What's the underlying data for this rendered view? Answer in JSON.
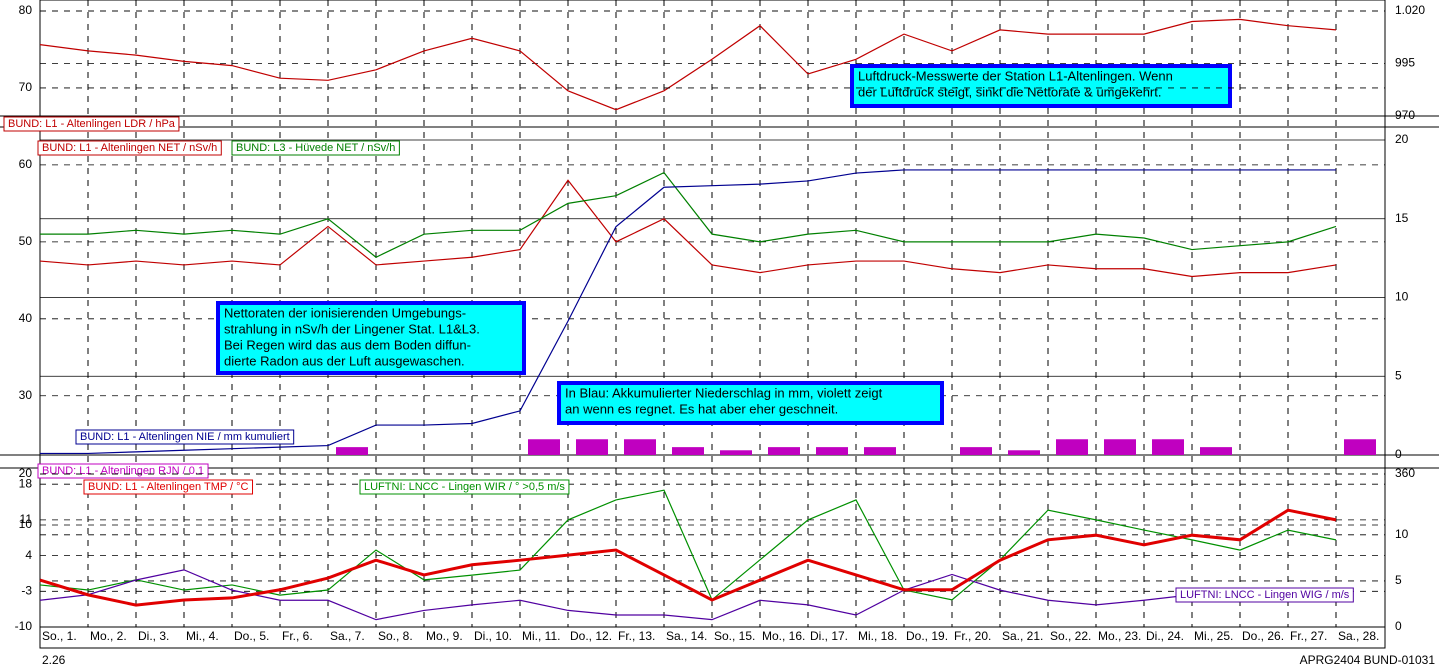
{
  "x_axis": {
    "categories": [
      "So., 1.",
      "Mo., 2.",
      "Di., 3.",
      "Mi., 4.",
      "Do., 5.",
      "Fr., 6.",
      "Sa., 7.",
      "So., 8.",
      "Mo., 9.",
      "Di., 10.",
      "Mi., 11.",
      "Do., 12.",
      "Fr., 13.",
      "Sa., 14.",
      "So., 15.",
      "Mo., 16.",
      "Di., 17.",
      "Mi., 18.",
      "Do., 19.",
      "Fr., 20.",
      "Sa., 21.",
      "So., 22.",
      "Mo., 23.",
      "Di., 24.",
      "Mi., 25.",
      "Do., 26.",
      "Fr., 27.",
      "Sa., 28."
    ],
    "sub_label": "2.26",
    "footer": "APRG2404 BUND-01031"
  },
  "chart_data": [
    {
      "type": "line",
      "y2lim": [
        970,
        1020
      ],
      "y2ticks": [
        {
          "value": 1020,
          "label": "1.020"
        },
        995,
        970
      ],
      "series": [
        {
          "name": "BUND: L1 - Altenlingen   LDR / hPa",
          "color": "#c00000",
          "axis": "y2",
          "values": [
            1004,
            1001,
            999,
            996,
            994,
            988,
            987,
            992,
            1001,
            1007,
            1001,
            982,
            973,
            982,
            997,
            1013,
            990,
            997,
            1009,
            1001,
            1011,
            1009,
            1009,
            1009,
            1015,
            1016,
            1013,
            1011
          ]
        }
      ],
      "annotations": [
        {
          "lines": [
            "Luftdruck-Messwerte der Station L1-Altenlingen. Wenn",
            "der Luftdruck steigt, sinkt die Nettorate & umgekehrt."
          ]
        }
      ]
    },
    {
      "type": "line",
      "ylim": [
        22.3,
        80
      ],
      "yticks": [
        30,
        40,
        50,
        60,
        70,
        80
      ],
      "y2lim": [
        0,
        20
      ],
      "y2ticks": [
        0,
        5,
        10,
        15,
        20
      ],
      "series": [
        {
          "name": "BUND: L1 - Altenlingen   NET / nSv/h",
          "color": "#c00000",
          "values": [
            47.5,
            47,
            47.5,
            47,
            47.5,
            47,
            52,
            47,
            47.5,
            48,
            49,
            58,
            50,
            53,
            47,
            46,
            47,
            47.5,
            47.5,
            46.5,
            46,
            47,
            46.5,
            46.5,
            45.5,
            46,
            46,
            47
          ]
        },
        {
          "name": "BUND: L3 - Hüvede   NET / nSv/h",
          "color": "#008000",
          "values": [
            51,
            51,
            51.5,
            51,
            51.5,
            51,
            53,
            48,
            51,
            51.5,
            51.5,
            55,
            56,
            59,
            51,
            50,
            51,
            51.5,
            50,
            50,
            50,
            50,
            51,
            50.5,
            49,
            49.5,
            50,
            52
          ]
        },
        {
          "name": "BUND: L1 - Altenlingen   NIE / mm kumuliert",
          "color": "#000090",
          "axis": "y2",
          "values": [
            0.1,
            0.1,
            0.2,
            0.3,
            0.4,
            0.5,
            0.6,
            1.9,
            1.9,
            2.0,
            2.8,
            8.5,
            14.5,
            17.0,
            17.1,
            17.2,
            17.4,
            17.9,
            18.1,
            18.1,
            18.1,
            18.1,
            18.1,
            18.1,
            18.1,
            18.1,
            18.1,
            18.1
          ]
        },
        {
          "name": "BUND: L1 - Altenlingen   RJN / 0.1",
          "color": "#c000c0",
          "axis": "y2",
          "style": "bar",
          "values": [
            0,
            0,
            0,
            0,
            0,
            0,
            0.5,
            0,
            0,
            0,
            1,
            1,
            1,
            0.5,
            0.3,
            0.5,
            0.5,
            0.5,
            0,
            0.5,
            0.3,
            1,
            1,
            1,
            0.5,
            0,
            0,
            1
          ]
        }
      ],
      "annotations": [
        {
          "lines": [
            "Nettoraten der ionisierenden Umgebungs-",
            "strahlung in nSv/h der Lingener Stat. L1&L3.",
            "Bei Regen wird das aus dem Boden diffun-",
            "dierte Radon aus der Luft ausgewaschen."
          ]
        },
        {
          "lines": [
            "In Blau: Akkumulierter Niederschlag in mm, violett zeigt",
            "an wenn es regnet. Es hat aber eher geschneit."
          ]
        }
      ]
    },
    {
      "type": "line",
      "ylim": [
        -10,
        20
      ],
      "yticks": [
        20,
        18,
        11,
        10,
        4,
        -3,
        -10
      ],
      "y2lim": [
        0,
        16.6
      ],
      "y2ticks": [
        0,
        5,
        10
      ],
      "y3lim": [
        0,
        360
      ],
      "y3ticks": [
        360
      ],
      "series": [
        {
          "name": "LUFTNI:  LNCC - Lingen   WIR / ° >0,5 m/s",
          "color": "#009000",
          "axis": "y3",
          "values": [
            99,
            87,
            111,
            87,
            99,
            75,
            87,
            181,
            111,
            122,
            134,
            252,
            299,
            322,
            64,
            158,
            252,
            299,
            87,
            64,
            158,
            275,
            252,
            228,
            205,
            181,
            228,
            205
          ]
        },
        {
          "name": "LUFTNI:  LNCC - Lingen   WIG / m/s",
          "color": "#5000a0",
          "axis": "y2",
          "values": [
            2.9,
            3.5,
            5.1,
            6.2,
            4.0,
            2.9,
            2.9,
            0.8,
            1.8,
            2.4,
            2.9,
            1.8,
            1.3,
            1.3,
            0.8,
            2.9,
            2.4,
            1.3,
            4.0,
            5.7,
            4.0,
            2.9,
            2.4,
            2.9,
            3.5,
            2.9,
            2.9,
            3.5
          ]
        },
        {
          "name": "BUND: L1 - Altenlingen   TMP / °C",
          "color": "#e00000",
          "width": 3,
          "values": [
            -0.8,
            -3.7,
            -5.7,
            -4.7,
            -4.3,
            -2.7,
            -0.4,
            3.1,
            0.2,
            2.2,
            3.1,
            4.1,
            5.1,
            0.2,
            -4.7,
            -0.8,
            3.1,
            0.2,
            -2.7,
            -2.7,
            3.1,
            7.1,
            8.0,
            6.1,
            8.0,
            7.1,
            12.9,
            11.0
          ]
        }
      ]
    }
  ]
}
